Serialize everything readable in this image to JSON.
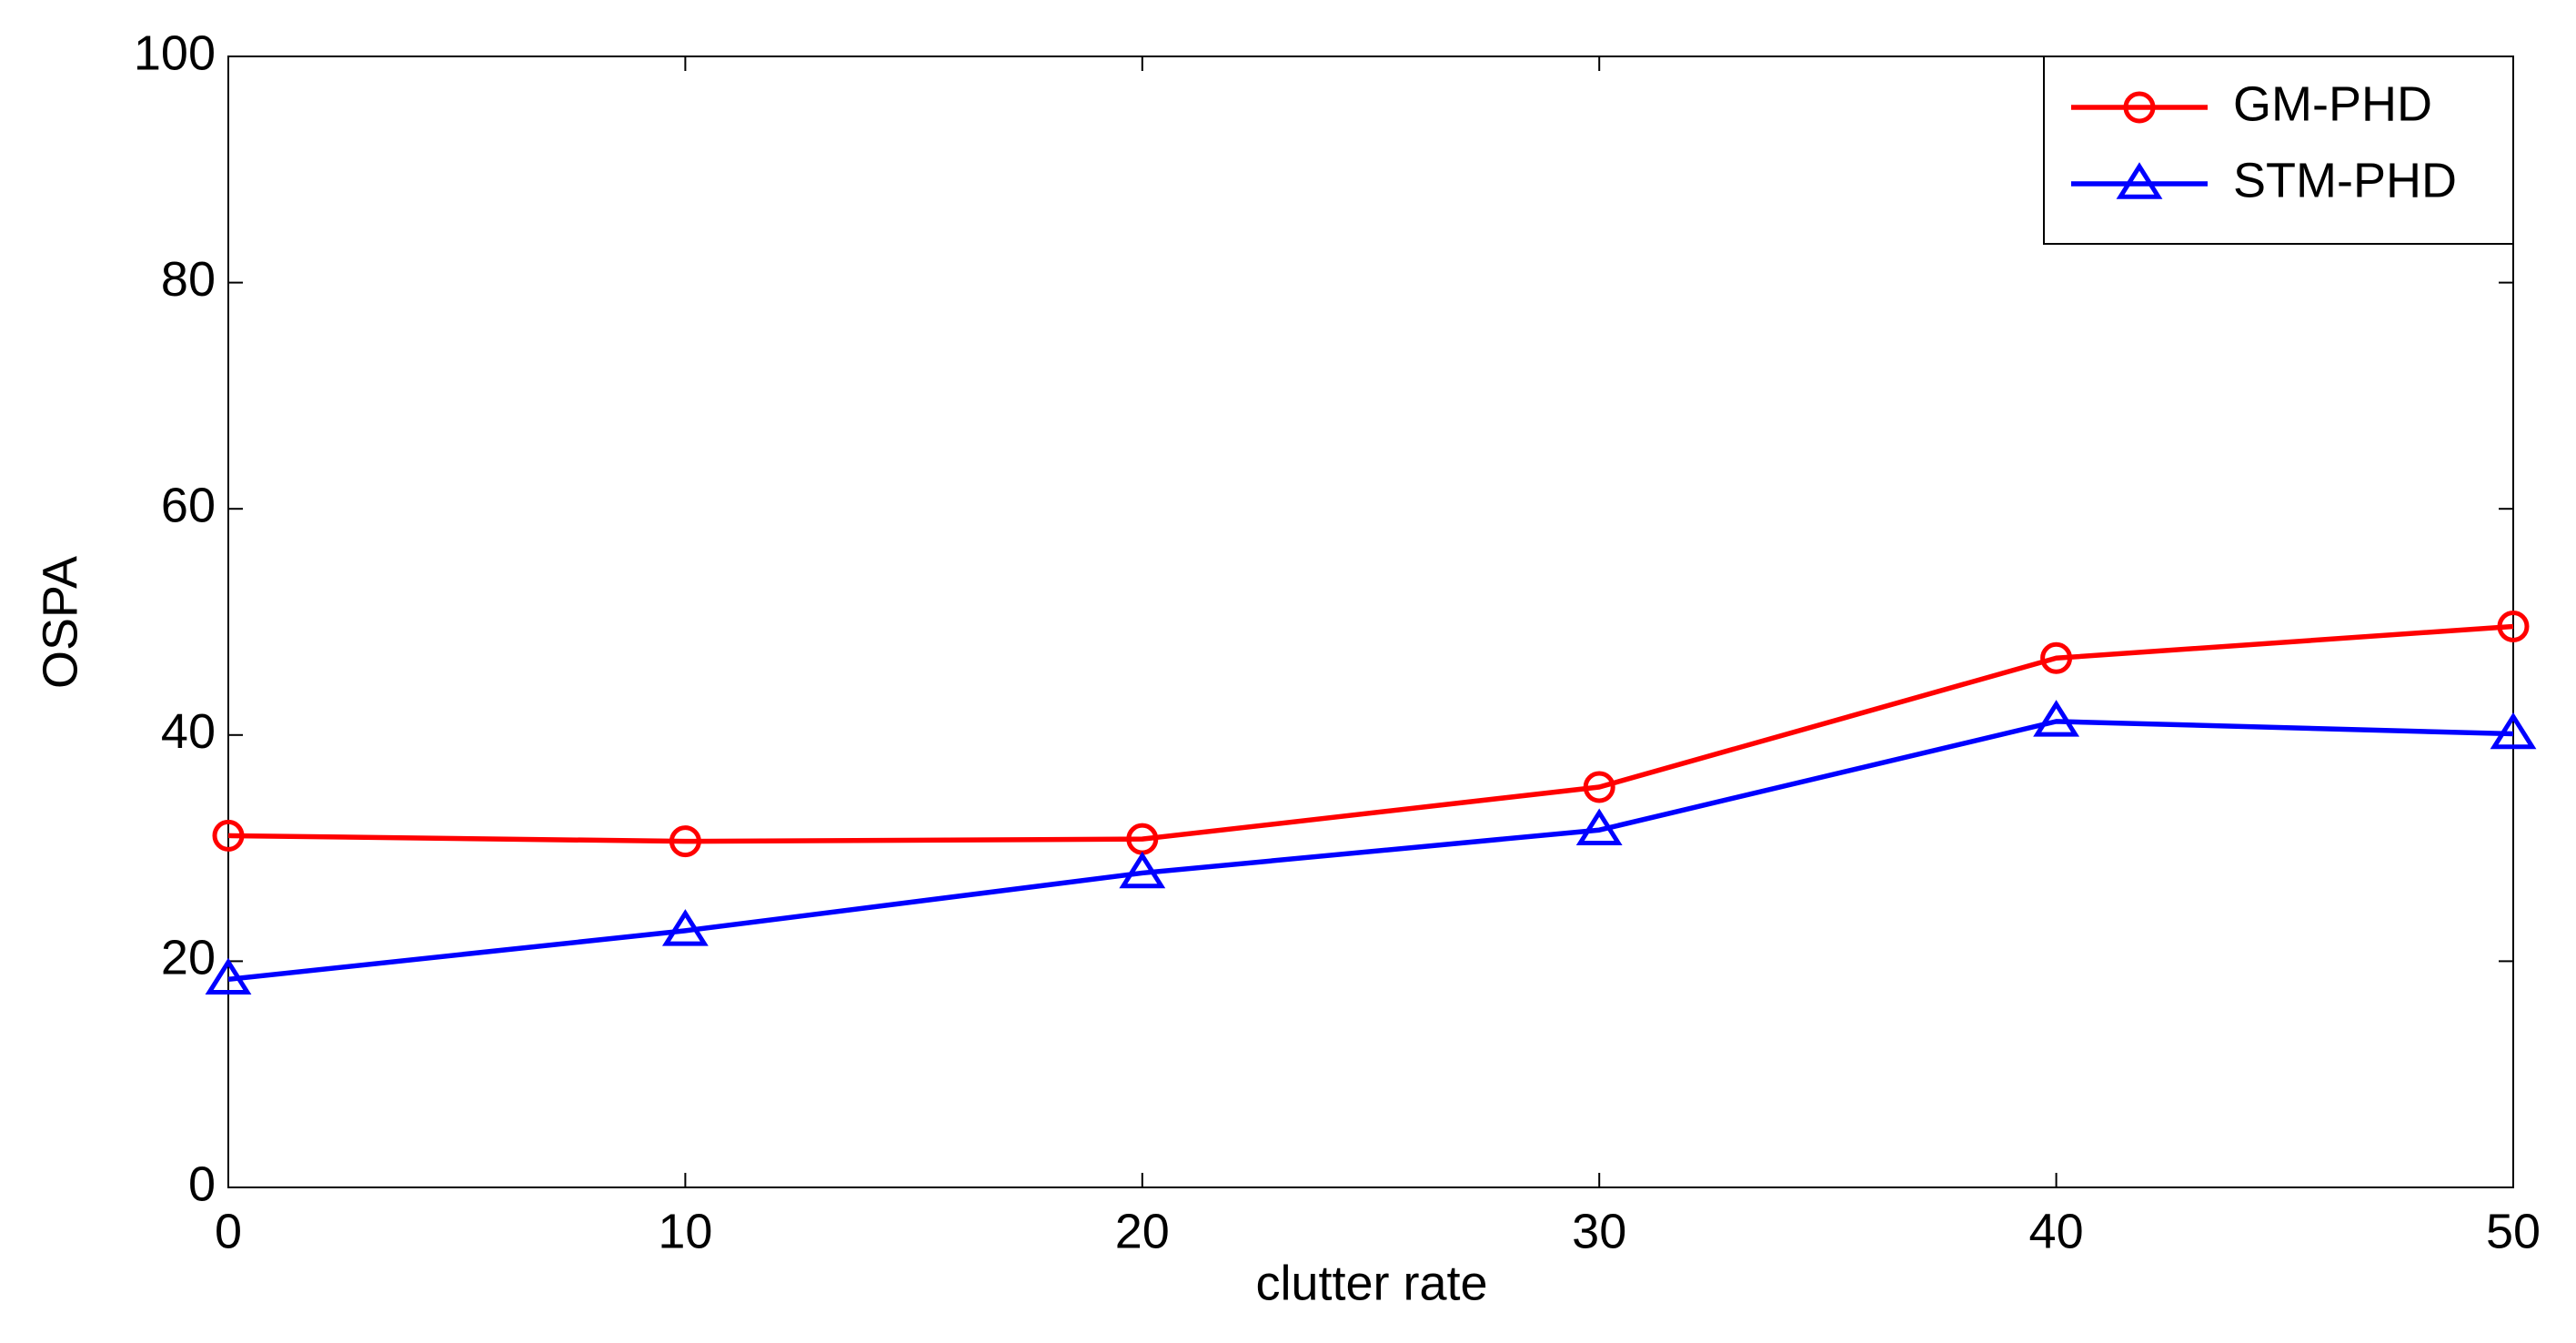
{
  "chart_data": {
    "type": "line",
    "x_label": "clutter rate",
    "y_label": "OSPA",
    "x": [
      0,
      10,
      20,
      30,
      40,
      50
    ],
    "series": [
      {
        "name": "GM-PHD",
        "color": "#ff0000",
        "marker": "circle",
        "values": [
          31.1,
          30.6,
          30.8,
          35.4,
          46.8,
          49.6
        ]
      },
      {
        "name": "STM-PHD",
        "color": "#0000ff",
        "marker": "triangle",
        "values": [
          18.4,
          22.7,
          27.8,
          31.6,
          41.2,
          40.1
        ]
      }
    ],
    "xlim": [
      0,
      50
    ],
    "xticks": [
      0,
      10,
      20,
      30,
      40,
      50
    ],
    "ylim": [
      0,
      100
    ],
    "yticks": [
      0,
      20,
      40,
      60,
      80,
      100
    ],
    "grid": false,
    "legend": "upper right"
  }
}
